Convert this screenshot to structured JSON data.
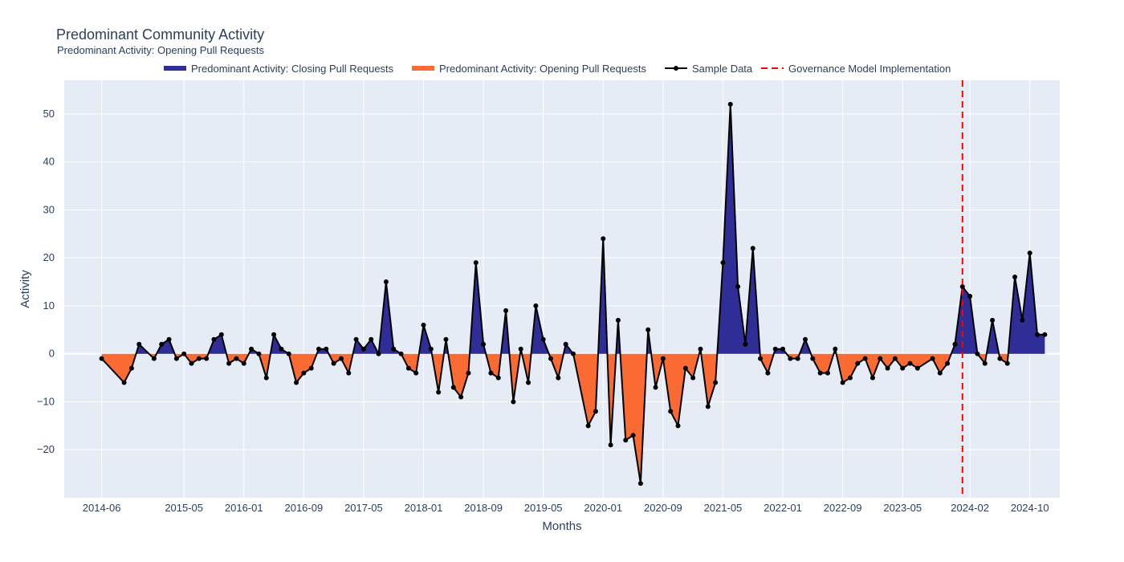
{
  "chart": {
    "title": "Predominant Community Activity",
    "subtitle": "Predominant Activity: Opening Pull Requests"
  },
  "chart_data": {
    "type": "area",
    "title": "Predominant Community Activity",
    "subtitle": "Predominant Activity: Opening Pull Requests",
    "xlabel": "Months",
    "ylabel": "Activity",
    "x_range": [
      "2014-01",
      "2025-02"
    ],
    "ylim": [
      -30,
      57
    ],
    "x_ticks": [
      "2014-06",
      "2015-05",
      "2016-01",
      "2016-09",
      "2017-05",
      "2018-01",
      "2018-09",
      "2019-05",
      "2020-01",
      "2020-09",
      "2021-05",
      "2022-01",
      "2022-09",
      "2023-05",
      "2024-02",
      "2024-10"
    ],
    "y_ticks": [
      -20,
      -10,
      0,
      10,
      20,
      30,
      40,
      50
    ],
    "grid": true,
    "legend_position": "top",
    "series": [
      {
        "name": "Predominant Activity: Closing Pull Requests",
        "kind": "fill-positive",
        "color": "#2e2e96"
      },
      {
        "name": "Predominant Activity: Opening Pull Requests",
        "kind": "fill-negative",
        "color": "#fa6a33"
      },
      {
        "name": "Sample Data",
        "kind": "line-markers",
        "color": "#000000",
        "points": [
          [
            "2014-06",
            -1
          ],
          [
            "2014-09",
            -6
          ],
          [
            "2014-10",
            -3
          ],
          [
            "2014-11",
            2
          ],
          [
            "2015-01",
            -1
          ],
          [
            "2015-02",
            2
          ],
          [
            "2015-03",
            3
          ],
          [
            "2015-04",
            -1
          ],
          [
            "2015-05",
            0
          ],
          [
            "2015-06",
            -2
          ],
          [
            "2015-07",
            -1
          ],
          [
            "2015-08",
            -1
          ],
          [
            "2015-09",
            3
          ],
          [
            "2015-10",
            4
          ],
          [
            "2015-11",
            -2
          ],
          [
            "2015-12",
            -1
          ],
          [
            "2016-01",
            -2
          ],
          [
            "2016-02",
            1
          ],
          [
            "2016-03",
            0
          ],
          [
            "2016-04",
            -5
          ],
          [
            "2016-05",
            4
          ],
          [
            "2016-06",
            1
          ],
          [
            "2016-07",
            0
          ],
          [
            "2016-08",
            -6
          ],
          [
            "2016-09",
            -4
          ],
          [
            "2016-10",
            -3
          ],
          [
            "2016-11",
            1
          ],
          [
            "2016-12",
            1
          ],
          [
            "2017-01",
            -2
          ],
          [
            "2017-02",
            -1
          ],
          [
            "2017-03",
            -4
          ],
          [
            "2017-04",
            3
          ],
          [
            "2017-05",
            1
          ],
          [
            "2017-06",
            3
          ],
          [
            "2017-07",
            0
          ],
          [
            "2017-08",
            15
          ],
          [
            "2017-09",
            1
          ],
          [
            "2017-10",
            0
          ],
          [
            "2017-11",
            -3
          ],
          [
            "2017-12",
            -4
          ],
          [
            "2018-01",
            6
          ],
          [
            "2018-02",
            1
          ],
          [
            "2018-03",
            -8
          ],
          [
            "2018-04",
            3
          ],
          [
            "2018-05",
            -7
          ],
          [
            "2018-06",
            -9
          ],
          [
            "2018-07",
            -4
          ],
          [
            "2018-08",
            19
          ],
          [
            "2018-09",
            2
          ],
          [
            "2018-10",
            -4
          ],
          [
            "2018-11",
            -5
          ],
          [
            "2018-12",
            9
          ],
          [
            "2019-01",
            -10
          ],
          [
            "2019-02",
            1
          ],
          [
            "2019-03",
            -6
          ],
          [
            "2019-04",
            10
          ],
          [
            "2019-05",
            3
          ],
          [
            "2019-06",
            -1
          ],
          [
            "2019-07",
            -5
          ],
          [
            "2019-08",
            2
          ],
          [
            "2019-09",
            0
          ],
          [
            "2019-11",
            -15
          ],
          [
            "2019-12",
            -12
          ],
          [
            "2020-01",
            24
          ],
          [
            "2020-02",
            -19
          ],
          [
            "2020-03",
            7
          ],
          [
            "2020-04",
            -18
          ],
          [
            "2020-05",
            -17
          ],
          [
            "2020-06",
            -27
          ],
          [
            "2020-07",
            5
          ],
          [
            "2020-08",
            -7
          ],
          [
            "2020-09",
            -1
          ],
          [
            "2020-10",
            -12
          ],
          [
            "2020-11",
            -15
          ],
          [
            "2020-12",
            -3
          ],
          [
            "2021-01",
            -5
          ],
          [
            "2021-02",
            1
          ],
          [
            "2021-03",
            -11
          ],
          [
            "2021-04",
            -6
          ],
          [
            "2021-05",
            19
          ],
          [
            "2021-06",
            52
          ],
          [
            "2021-07",
            14
          ],
          [
            "2021-08",
            2
          ],
          [
            "2021-09",
            22
          ],
          [
            "2021-10",
            -1
          ],
          [
            "2021-11",
            -4
          ],
          [
            "2021-12",
            1
          ],
          [
            "2022-01",
            1
          ],
          [
            "2022-02",
            -1
          ],
          [
            "2022-03",
            -1
          ],
          [
            "2022-04",
            3
          ],
          [
            "2022-05",
            -1
          ],
          [
            "2022-06",
            -4
          ],
          [
            "2022-07",
            -4
          ],
          [
            "2022-08",
            1
          ],
          [
            "2022-09",
            -6
          ],
          [
            "2022-10",
            -5
          ],
          [
            "2022-11",
            -2
          ],
          [
            "2022-12",
            -1
          ],
          [
            "2023-01",
            -5
          ],
          [
            "2023-02",
            -1
          ],
          [
            "2023-03",
            -3
          ],
          [
            "2023-04",
            -1
          ],
          [
            "2023-05",
            -3
          ],
          [
            "2023-06",
            -2
          ],
          [
            "2023-07",
            -3
          ],
          [
            "2023-09",
            -1
          ],
          [
            "2023-10",
            -4
          ],
          [
            "2023-11",
            -2
          ],
          [
            "2023-12",
            2
          ],
          [
            "2024-01",
            14
          ],
          [
            "2024-02",
            12
          ],
          [
            "2024-03",
            0
          ],
          [
            "2024-04",
            -2
          ],
          [
            "2024-05",
            7
          ],
          [
            "2024-06",
            -1
          ],
          [
            "2024-07",
            -2
          ],
          [
            "2024-08",
            16
          ],
          [
            "2024-09",
            7
          ],
          [
            "2024-10",
            21
          ],
          [
            "2024-11",
            4
          ],
          [
            "2024-12",
            4
          ]
        ]
      },
      {
        "name": "Governance Model Implementation",
        "kind": "vline",
        "color": "#ff0000",
        "x": "2024-01"
      }
    ]
  }
}
